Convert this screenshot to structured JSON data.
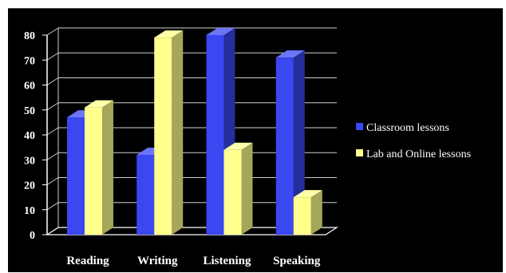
{
  "chart_data": {
    "type": "bar",
    "title": "",
    "xlabel": "",
    "ylabel": "",
    "categories": [
      "Reading",
      "Writing",
      "Listening",
      "Speaking"
    ],
    "series": [
      {
        "name": "Classroom lessons",
        "values": [
          47,
          32,
          80,
          71
        ],
        "color": "#3b47f0"
      },
      {
        "name": "Lab and Online lessons",
        "values": [
          51,
          79,
          34,
          15
        ],
        "color": "#ffff8c"
      }
    ],
    "ylim": [
      0,
      80
    ],
    "yticks": [
      "0",
      "10",
      "20",
      "30",
      "40",
      "50",
      "60",
      "70",
      "80"
    ],
    "grid": true,
    "legend_position": "right",
    "style": "3d-column",
    "background": "#000000"
  }
}
